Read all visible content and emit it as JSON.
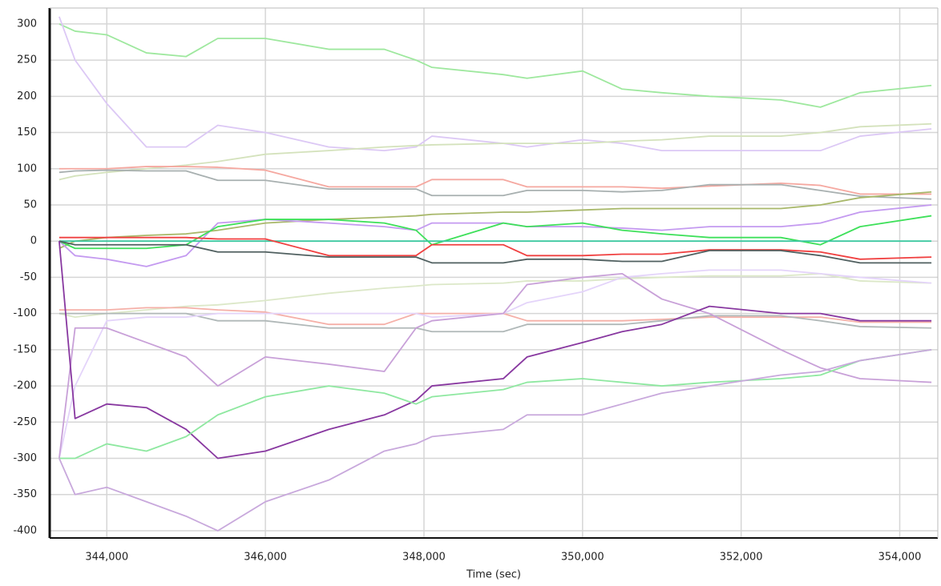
{
  "chart_data": {
    "type": "line",
    "x_label": "Time (sec)",
    "x": [
      343400,
      343600,
      344000,
      344500,
      345000,
      345400,
      346000,
      346800,
      347500,
      347900,
      348100,
      349000,
      349300,
      350000,
      350500,
      351000,
      351600,
      352500,
      353000,
      353500,
      354400
    ],
    "xlim": [
      343280,
      354480
    ],
    "xticks": [
      {
        "value": 344000,
        "label": "344,000"
      },
      {
        "value": 346000,
        "label": "346,000"
      },
      {
        "value": 348000,
        "label": "348,000"
      },
      {
        "value": 350000,
        "label": "350,000"
      },
      {
        "value": 352000,
        "label": "352,000"
      },
      {
        "value": 354000,
        "label": "354,000"
      }
    ],
    "ylim": [
      -410,
      322
    ],
    "yticks": [
      -400,
      -350,
      -300,
      -250,
      -200,
      -150,
      -100,
      -50,
      0,
      50,
      100,
      150,
      200,
      250,
      300
    ],
    "grid": true,
    "series": [
      {
        "color": "#9ee89e",
        "values": [
          300,
          290,
          285,
          260,
          255,
          280,
          280,
          265,
          265,
          250,
          240,
          230,
          225,
          235,
          210,
          205,
          200,
          195,
          185,
          205,
          215
        ]
      },
      {
        "color": "#dcc8f5",
        "values": [
          310,
          250,
          190,
          130,
          130,
          160,
          150,
          130,
          125,
          130,
          145,
          135,
          130,
          140,
          135,
          125,
          125,
          125,
          125,
          145,
          155
        ]
      },
      {
        "color": "#d4e2bc",
        "values": [
          85,
          90,
          95,
          100,
          105,
          110,
          120,
          125,
          130,
          132,
          133,
          135,
          135,
          135,
          138,
          140,
          145,
          145,
          150,
          158,
          162
        ]
      },
      {
        "color": "#f5a8a0",
        "values": [
          100,
          100,
          100,
          103,
          103,
          102,
          98,
          75,
          75,
          75,
          85,
          85,
          75,
          75,
          75,
          73,
          76,
          80,
          77,
          65,
          65
        ]
      },
      {
        "color": "#a8b0b0",
        "values": [
          95,
          97,
          98,
          97,
          97,
          84,
          84,
          72,
          72,
          72,
          63,
          63,
          70,
          70,
          68,
          70,
          78,
          78,
          70,
          62,
          58
        ]
      },
      {
        "color": "#a8b86a",
        "values": [
          -10,
          0,
          5,
          8,
          10,
          15,
          25,
          30,
          33,
          35,
          37,
          40,
          40,
          43,
          45,
          45,
          45,
          45,
          50,
          60,
          68
        ]
      },
      {
        "color": "#c49af0",
        "values": [
          0,
          -20,
          -25,
          -35,
          -20,
          25,
          30,
          25,
          20,
          15,
          25,
          25,
          20,
          20,
          18,
          15,
          20,
          20,
          25,
          40,
          50
        ]
      },
      {
        "color": "#3ee05a",
        "values": [
          0,
          -10,
          -10,
          -10,
          -5,
          20,
          30,
          30,
          25,
          15,
          -5,
          25,
          20,
          25,
          15,
          10,
          5,
          5,
          -5,
          20,
          35
        ]
      },
      {
        "color": "#3cc8a0",
        "values": [
          0,
          0,
          0,
          0,
          0,
          0,
          0,
          0,
          0,
          0,
          0,
          0,
          0,
          0,
          0,
          0,
          0,
          0,
          0,
          0,
          0
        ]
      },
      {
        "color": "#f04040",
        "values": [
          5,
          5,
          5,
          5,
          5,
          3,
          3,
          -20,
          -20,
          -20,
          -5,
          -5,
          -20,
          -20,
          -18,
          -18,
          -12,
          -12,
          -15,
          -25,
          -22
        ]
      },
      {
        "color": "#506060",
        "values": [
          0,
          -5,
          -5,
          -5,
          -5,
          -15,
          -15,
          -22,
          -22,
          -22,
          -30,
          -30,
          -25,
          -25,
          -28,
          -28,
          -13,
          -13,
          -20,
          -30,
          -30
        ]
      },
      {
        "color": "#dce8c8",
        "values": [
          -100,
          -105,
          -100,
          -95,
          -90,
          -88,
          -82,
          -72,
          -65,
          -62,
          -60,
          -58,
          -55,
          -55,
          -52,
          -50,
          -48,
          -48,
          -45,
          -55,
          -58
        ]
      },
      {
        "color": "#f5b0a8",
        "values": [
          -95,
          -95,
          -95,
          -92,
          -92,
          -95,
          -98,
          -115,
          -115,
          -100,
          -100,
          -100,
          -110,
          -110,
          -110,
          -108,
          -105,
          -105,
          -105,
          -112,
          -112
        ]
      },
      {
        "color": "#b0b8b8",
        "values": [
          -100,
          -100,
          -100,
          -100,
          -100,
          -110,
          -110,
          -120,
          -120,
          -120,
          -125,
          -125,
          -115,
          -115,
          -115,
          -110,
          -103,
          -103,
          -110,
          -118,
          -120
        ]
      },
      {
        "color": "#e4d4fa",
        "values": [
          -300,
          -200,
          -110,
          -105,
          -105,
          -100,
          -100,
          -100,
          -100,
          -100,
          -105,
          -100,
          -85,
          -70,
          -50,
          -45,
          -40,
          -40,
          -45,
          -50,
          -58
        ]
      },
      {
        "color": "#c8a0d8",
        "values": [
          -300,
          -120,
          -120,
          -140,
          -160,
          -200,
          -160,
          -170,
          -180,
          -120,
          -110,
          -100,
          -60,
          -50,
          -45,
          -80,
          -100,
          -150,
          -175,
          -190,
          -195
        ]
      },
      {
        "color": "#8838a0",
        "values": [
          0,
          -245,
          -225,
          -230,
          -260,
          -300,
          -290,
          -260,
          -240,
          -220,
          -200,
          -190,
          -160,
          -140,
          -125,
          -115,
          -90,
          -100,
          -100,
          -110,
          -110
        ]
      },
      {
        "color": "#8ee8a0",
        "values": [
          -300,
          -300,
          -280,
          -290,
          -270,
          -240,
          -215,
          -200,
          -210,
          -225,
          -215,
          -205,
          -195,
          -190,
          -195,
          -200,
          -195,
          -190,
          -185,
          -165,
          -150
        ]
      },
      {
        "color": "#c8a8dc",
        "values": [
          -300,
          -350,
          -340,
          -360,
          -380,
          -400,
          -360,
          -330,
          -290,
          -280,
          -270,
          -260,
          -240,
          -240,
          -225,
          -210,
          -200,
          -185,
          -180,
          -165,
          -150
        ]
      }
    ]
  }
}
